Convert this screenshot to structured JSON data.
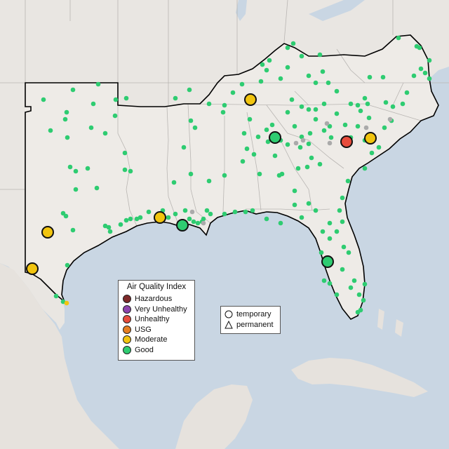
{
  "map": {
    "colors": {
      "water": "#c9d6e3",
      "land_outside": "#e9e6e2",
      "land_region": "#eeebe7",
      "state_lines": "#b9b6b3",
      "region_outline": "#000000",
      "monitor_good": "#2ecc71",
      "monitor_gray": "#aaaaaa"
    },
    "small_monitor_count_note": "",
    "large_monitors": [
      {
        "category": "Moderate",
        "shape": "temporary"
      },
      {
        "category": "Good",
        "shape": "temporary"
      },
      {
        "category": "Unhealthy",
        "shape": "temporary"
      },
      {
        "category": "Moderate",
        "shape": "temporary"
      },
      {
        "category": "Moderate",
        "shape": "temporary"
      },
      {
        "category": "Moderate",
        "shape": "temporary"
      },
      {
        "category": "Good",
        "shape": "temporary"
      },
      {
        "category": "Moderate",
        "shape": "temporary"
      },
      {
        "category": "Good",
        "shape": "temporary"
      }
    ]
  },
  "aqi_legend": {
    "title": "Air Quality Index",
    "items": [
      {
        "label": "Hazardous",
        "color": "#7e2a2a"
      },
      {
        "label": "Very Unhealthy",
        "color": "#8e44ad"
      },
      {
        "label": "Unhealthy",
        "color": "#e74c3c"
      },
      {
        "label": "USG",
        "color": "#e67e22"
      },
      {
        "label": "Moderate",
        "color": "#f1c40f"
      },
      {
        "label": "Good",
        "color": "#2ecc71"
      }
    ]
  },
  "type_legend": {
    "items": [
      {
        "label": "temporary",
        "shape": "circle"
      },
      {
        "label": "permanent",
        "shape": "triangle"
      }
    ]
  }
}
